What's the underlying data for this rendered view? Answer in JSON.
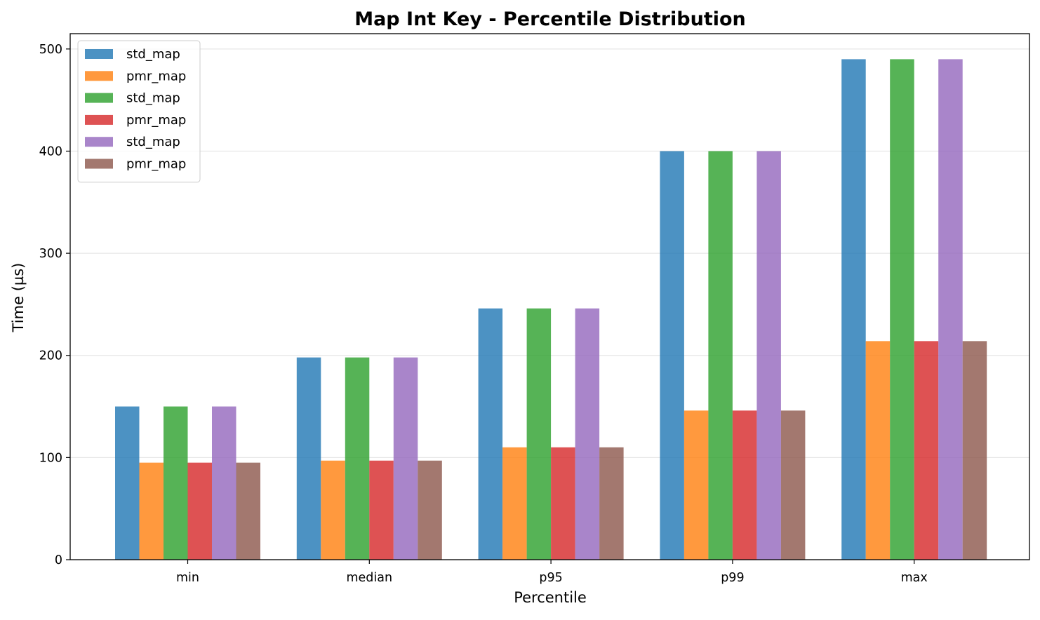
{
  "chart_data": {
    "type": "bar",
    "title": "Map Int Key - Percentile Distribution",
    "xlabel": "Percentile",
    "ylabel": "Time (µs)",
    "categories": [
      "min",
      "median",
      "p95",
      "p99",
      "max"
    ],
    "ylim": [
      0,
      515
    ],
    "yticks": [
      0,
      100,
      200,
      300,
      400,
      500
    ],
    "grid": "y",
    "legend_position": "top-left",
    "series": [
      {
        "name": "std_map",
        "color": "#1f77b4",
        "values": [
          150,
          198,
          246,
          400,
          490
        ]
      },
      {
        "name": "pmr_map",
        "color": "#ff7f0e",
        "values": [
          95,
          97,
          110,
          146,
          214
        ]
      },
      {
        "name": "std_map",
        "color": "#2ca02c",
        "values": [
          150,
          198,
          246,
          400,
          490
        ]
      },
      {
        "name": "pmr_map",
        "color": "#d62728",
        "values": [
          95,
          97,
          110,
          146,
          214
        ]
      },
      {
        "name": "std_map",
        "color": "#9467bd",
        "values": [
          150,
          198,
          246,
          400,
          490
        ]
      },
      {
        "name": "pmr_map",
        "color": "#8c564b",
        "values": [
          95,
          97,
          110,
          146,
          214
        ]
      }
    ]
  }
}
